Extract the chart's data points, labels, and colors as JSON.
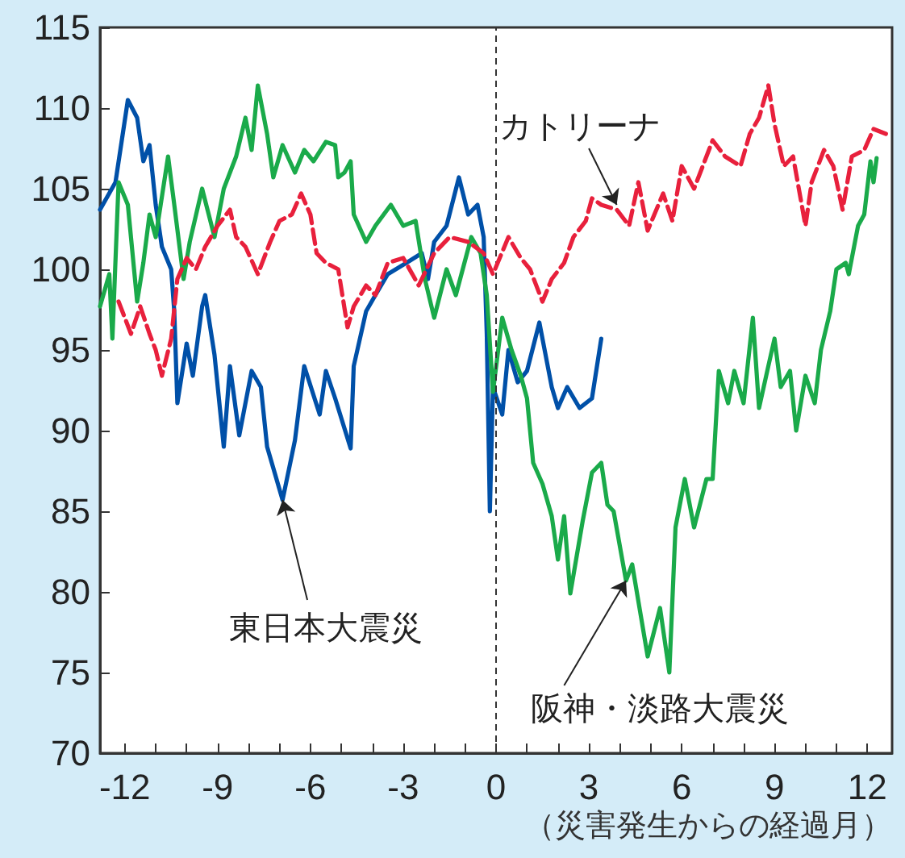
{
  "chart_data": {
    "type": "line",
    "xlabel": "（災害発生からの経過月）",
    "xlim": [
      -12.8,
      12.8
    ],
    "xticks": [
      {
        "value": -12,
        "label": "-12"
      },
      {
        "value": -11,
        "label": null
      },
      {
        "value": -10,
        "label": null
      },
      {
        "value": -9,
        "label": "-9"
      },
      {
        "value": -8,
        "label": null
      },
      {
        "value": -7,
        "label": null
      },
      {
        "value": -6,
        "label": "-6"
      },
      {
        "value": -5,
        "label": null
      },
      {
        "value": -4,
        "label": null
      },
      {
        "value": -3,
        "label": "-3"
      },
      {
        "value": -2,
        "label": null
      },
      {
        "value": -1,
        "label": null
      },
      0,
      {
        "value": 1,
        "label": null
      },
      {
        "value": 2,
        "label": null
      },
      3,
      {
        "value": 4,
        "label": null
      },
      {
        "value": 5,
        "label": null
      },
      6,
      {
        "value": 7,
        "label": null
      },
      {
        "value": 8,
        "label": null
      },
      9,
      {
        "value": 10,
        "label": null
      },
      {
        "value": 11,
        "label": null
      },
      12
    ],
    "ylim": [
      70,
      115
    ],
    "yticks": [
      70,
      75,
      80,
      85,
      90,
      95,
      100,
      105,
      110,
      115
    ],
    "grid": false,
    "marker": "none",
    "series": [
      {
        "color": "#0050a8",
        "line_style": "solid",
        "x": [
          -12.8,
          -12.3,
          -11.9,
          -11.6,
          -11.4,
          -11.2,
          -11.0,
          -10.8,
          -10.5,
          -10.4,
          -10.3,
          -10.0,
          -9.8,
          -9.5,
          -9.4,
          -9.1,
          -8.8,
          -8.6,
          -8.3,
          -7.9,
          -7.6,
          -7.4,
          -6.9,
          -6.5,
          -6.2,
          -5.7,
          -5.5,
          -5.2,
          -4.7,
          -4.6,
          -4.2,
          -3.9,
          -3.5,
          -2.9,
          -2.4,
          -2.2,
          -2.0,
          -1.6,
          -1.2,
          -0.9,
          -0.6,
          -0.4,
          -0.3,
          -0.2,
          -0.1,
          0.2,
          0.4,
          0.7,
          1.0,
          1.4,
          1.8,
          2.0,
          2.3,
          2.7,
          3.1,
          3.4
        ],
        "values": [
          103.7,
          105.4,
          110.5,
          109.4,
          106.7,
          107.7,
          104,
          101.4,
          100,
          97.4,
          91.7,
          95.4,
          93.4,
          97.7,
          98.4,
          94.7,
          89,
          94,
          89.7,
          93.7,
          92.7,
          89,
          85.7,
          89.4,
          94,
          91,
          93.7,
          92,
          88.9,
          94,
          97.4,
          98.4,
          99.7,
          100.4,
          101,
          99.4,
          101.7,
          102.7,
          105.7,
          103.4,
          104,
          102,
          96,
          85,
          92.7,
          91,
          95,
          93,
          93.7,
          96.7,
          92.7,
          91.4,
          92.7,
          91.4,
          92,
          95.7
        ]
      },
      {
        "color": "#1aaa4a",
        "line_style": "solid",
        "x": [
          -12.8,
          -12.5,
          -12.4,
          -12.2,
          -11.9,
          -11.6,
          -11.4,
          -11.2,
          -11.0,
          -10.6,
          -10.4,
          -10.1,
          -9.9,
          -9.5,
          -9.1,
          -8.8,
          -8.4,
          -8.1,
          -7.9,
          -7.7,
          -7.4,
          -7.2,
          -6.9,
          -6.5,
          -6.2,
          -5.9,
          -5.5,
          -5.2,
          -5.1,
          -4.9,
          -4.7,
          -4.6,
          -4.2,
          -3.9,
          -3.4,
          -3.0,
          -2.6,
          -2.3,
          -2.0,
          -1.6,
          -1.3,
          -0.8,
          -0.5,
          -0.3,
          -0.1,
          0.2,
          0.5,
          0.8,
          1.0,
          1.2,
          1.5,
          1.8,
          2.0,
          2.2,
          2.4,
          2.8,
          3.1,
          3.4,
          3.6,
          3.8,
          4.2,
          4.4,
          4.9,
          5.3,
          5.6,
          5.8,
          6.1,
          6.4,
          6.8,
          7.0,
          7.2,
          7.5,
          7.7,
          8.0,
          8.3,
          8.5,
          8.8,
          9.0,
          9.2,
          9.5,
          9.7,
          10.0,
          10.3,
          10.5,
          10.8,
          11.0,
          11.3,
          11.4,
          11.7,
          11.9,
          12.1,
          12.2,
          12.3
        ],
        "values": [
          97.7,
          99.7,
          95.7,
          105.4,
          104,
          98,
          100.4,
          103.4,
          102,
          107,
          104,
          99.4,
          101.7,
          105,
          102,
          105,
          107,
          109.4,
          107.4,
          111.4,
          108.4,
          105.7,
          107.7,
          106,
          107.4,
          106.7,
          107.9,
          107.7,
          105.7,
          106,
          106.7,
          103.4,
          101.7,
          102.7,
          104,
          102.7,
          103,
          99.4,
          97,
          100,
          98.4,
          102,
          101,
          98.4,
          92.4,
          97,
          95,
          93.4,
          92,
          88,
          86.7,
          84.7,
          82,
          84.7,
          79.9,
          84.4,
          87.4,
          88,
          85.4,
          85,
          80.7,
          81.7,
          76,
          79,
          75,
          84,
          87,
          84,
          87,
          87,
          93.7,
          91.7,
          93.7,
          91.7,
          97,
          91.4,
          94,
          95.7,
          92.7,
          93.7,
          90,
          93.4,
          91.7,
          95,
          97.4,
          100,
          100.4,
          99.7,
          102.7,
          103.4,
          106.7,
          105.4,
          106.9
        ]
      },
      {
        "color": "#e8203c",
        "line_style": "dashed",
        "x": [
          -12.2,
          -11.8,
          -11.5,
          -11.2,
          -11.0,
          -10.8,
          -10.5,
          -10.3,
          -10.0,
          -9.7,
          -9.4,
          -9.0,
          -8.6,
          -8.4,
          -8.1,
          -7.7,
          -7.3,
          -7.0,
          -6.6,
          -6.3,
          -6.0,
          -5.8,
          -5.5,
          -5.1,
          -4.8,
          -4.6,
          -4.2,
          -3.9,
          -3.5,
          -3.0,
          -2.5,
          -2.0,
          -1.5,
          -0.9,
          -0.4,
          -0.1,
          0.4,
          0.8,
          1.1,
          1.5,
          1.8,
          2.2,
          2.5,
          2.9,
          3.1,
          3.4,
          3.9,
          4.3,
          4.6,
          4.9,
          5.4,
          5.7,
          6.0,
          6.4,
          7.0,
          7.4,
          7.9,
          8.2,
          8.5,
          8.8,
          9.0,
          9.3,
          9.6,
          10.0,
          10.2,
          10.6,
          10.9,
          11.2,
          11.5,
          11.9,
          12.2,
          12.6
        ],
        "values": [
          98,
          96,
          97.7,
          96,
          95,
          93.4,
          95.7,
          99.4,
          100.7,
          100,
          101.4,
          102.7,
          103.7,
          102,
          101.4,
          99.7,
          101.7,
          103,
          103.4,
          104.7,
          103.4,
          101,
          100.4,
          100,
          96.4,
          97.7,
          99,
          98.4,
          100.4,
          100.7,
          99,
          101,
          102,
          101.7,
          101,
          99.7,
          102,
          100.7,
          100,
          98,
          99.4,
          100.4,
          102,
          103,
          104.4,
          104,
          103.7,
          102.7,
          105.4,
          102.4,
          104.7,
          103,
          106.4,
          105,
          108,
          107,
          106.4,
          108.4,
          109.4,
          111.4,
          109,
          106.4,
          107,
          102.7,
          105.4,
          107.4,
          106.4,
          103.7,
          107,
          107.4,
          108.7,
          108.4
        ]
      }
    ],
    "ref_lines": [
      {
        "axis": "x",
        "value": 0,
        "color": "#333333",
        "line_style": "dashed"
      }
    ],
    "annotations": [
      {
        "text": "東日本大震災",
        "x": -6.9,
        "y": 85.7
      },
      {
        "text": "カトリーナ",
        "x": 3.9,
        "y": 104
      },
      {
        "text": "阪神・淡路大震災",
        "x": 4.2,
        "y": 80.7
      }
    ]
  }
}
